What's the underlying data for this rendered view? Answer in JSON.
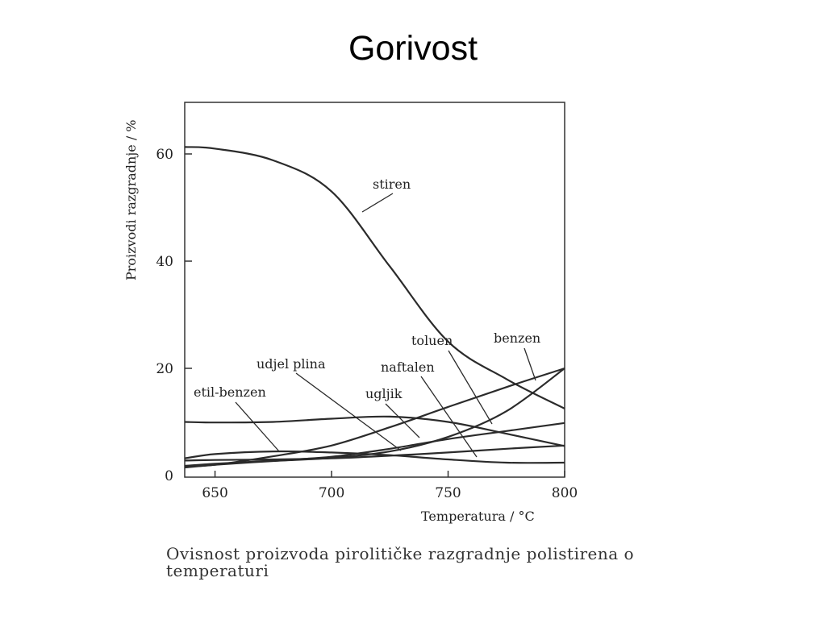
{
  "title": "Gorivost",
  "caption": {
    "line1": "Ovisnost proizvoda pirolitičke razgradnje polistirena o",
    "line2": "temperaturi"
  },
  "chart_data": {
    "type": "line",
    "xlabel": "Temperatura  /  °C",
    "ylabel": "Proizvodi  razgradnje  /  %",
    "xlim": [
      637,
      800
    ],
    "ylim": [
      0,
      70
    ],
    "x_ticks": [
      650,
      700,
      750,
      800
    ],
    "y_ticks": [
      0,
      20,
      40,
      60
    ],
    "grid": false,
    "legend": "none (labels with leader lines)",
    "series": [
      {
        "name": "stiren",
        "x": [
          637,
          650,
          675,
          700,
          725,
          750,
          775,
          800
        ],
        "y": [
          61.3,
          61,
          58.8,
          53,
          39,
          25,
          18,
          12.5
        ]
      },
      {
        "name": "benzen",
        "x": [
          637,
          650,
          675,
          700,
          725,
          750,
          775,
          800
        ],
        "y": [
          1.7,
          2,
          3.6,
          5.6,
          9,
          12.8,
          16.5,
          20
        ]
      },
      {
        "name": "toluen",
        "x": [
          637,
          650,
          675,
          700,
          725,
          750,
          775,
          800
        ],
        "y": [
          1.5,
          2,
          2.7,
          3.3,
          4.5,
          7.2,
          12,
          20
        ]
      },
      {
        "name": "udjel  plina",
        "x": [
          637,
          650,
          675,
          700,
          725,
          750,
          775,
          800
        ],
        "y": [
          1.8,
          2.2,
          2.8,
          3.5,
          5,
          6.8,
          8.3,
          9.8
        ]
      },
      {
        "name": "naftalen",
        "x": [
          637,
          650,
          675,
          700,
          725,
          750,
          775,
          800
        ],
        "y": [
          2.8,
          2.9,
          3.0,
          3.2,
          3.7,
          4.3,
          5.0,
          5.6
        ]
      },
      {
        "name": "ugljik",
        "x": [
          637,
          650,
          675,
          700,
          725,
          750,
          775,
          800
        ],
        "y": [
          10,
          9.9,
          10,
          10.6,
          11,
          10,
          7.8,
          5.5
        ]
      },
      {
        "name": "etil-benzen",
        "x": [
          637,
          650,
          675,
          700,
          725,
          750,
          775,
          800
        ],
        "y": [
          3.2,
          4,
          4.5,
          4.3,
          3.8,
          3,
          2.4,
          2.4
        ]
      }
    ]
  }
}
